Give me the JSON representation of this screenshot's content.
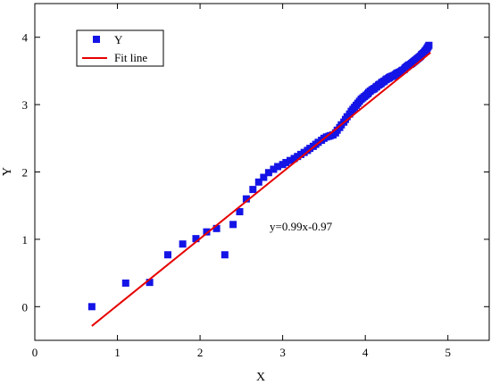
{
  "chart_data": {
    "type": "scatter",
    "xlabel": "X",
    "ylabel": "Y",
    "xlim": [
      0,
      5.5
    ],
    "ylim": [
      -0.5,
      4.5
    ],
    "x_ticks": [
      0,
      1,
      2,
      3,
      4,
      5
    ],
    "y_ticks": [
      0,
      1,
      2,
      3,
      4
    ],
    "x_tick_labels": [
      "0",
      "1",
      "2",
      "3",
      "4",
      "5"
    ],
    "y_tick_labels": [
      "0",
      "1",
      "2",
      "3",
      "4"
    ],
    "grid": false,
    "legend_position": "top-left",
    "annotation": "y=0.99x-0.97",
    "series": [
      {
        "name": "Y",
        "kind": "scatter",
        "color": "#1414e6",
        "marker": "square",
        "x": [
          0.69,
          1.1,
          1.39,
          1.61,
          1.79,
          1.95,
          2.08,
          2.2,
          2.3,
          2.4,
          2.48,
          2.56,
          2.64,
          2.71,
          2.77,
          2.83,
          2.89,
          2.94,
          3.0,
          3.04,
          3.09,
          3.14,
          3.18,
          3.22,
          3.26,
          3.3,
          3.33,
          3.37,
          3.4,
          3.43,
          3.47,
          3.5,
          3.53,
          3.56,
          3.58,
          3.61,
          3.64,
          3.66,
          3.69,
          3.71,
          3.74,
          3.76,
          3.78,
          3.81,
          3.83,
          3.85,
          3.87,
          3.89,
          3.91,
          3.93,
          3.95,
          3.97,
          3.99,
          4.01,
          4.03,
          4.04,
          4.06,
          4.08,
          4.1,
          4.11,
          4.13,
          4.14,
          4.16,
          4.17,
          4.19,
          4.2,
          4.22,
          4.23,
          4.25,
          4.26,
          4.28,
          4.29,
          4.3,
          4.32,
          4.33,
          4.34,
          4.36,
          4.37,
          4.38,
          4.39,
          4.41,
          4.42,
          4.43,
          4.44,
          4.45,
          4.47,
          4.48,
          4.49,
          4.5,
          4.51,
          4.52,
          4.53,
          4.55,
          4.56,
          4.57,
          4.58,
          4.59,
          4.6,
          4.61,
          4.62,
          4.63,
          4.64,
          4.65,
          4.66,
          4.67,
          4.68,
          4.69,
          4.7,
          4.71,
          4.72,
          4.73,
          4.74,
          4.75,
          4.76,
          4.77
        ],
        "y": [
          0.0,
          0.35,
          0.36,
          0.77,
          0.93,
          1.01,
          1.11,
          1.16,
          0.77,
          1.22,
          1.41,
          1.6,
          1.74,
          1.85,
          1.92,
          1.99,
          2.04,
          2.08,
          2.11,
          2.14,
          2.17,
          2.2,
          2.23,
          2.26,
          2.29,
          2.32,
          2.35,
          2.38,
          2.41,
          2.44,
          2.47,
          2.5,
          2.52,
          2.53,
          2.54,
          2.55,
          2.58,
          2.62,
          2.66,
          2.7,
          2.74,
          2.78,
          2.82,
          2.86,
          2.9,
          2.93,
          2.96,
          2.99,
          3.02,
          3.05,
          3.08,
          3.1,
          3.12,
          3.14,
          3.16,
          3.18,
          3.2,
          3.22,
          3.23,
          3.24,
          3.26,
          3.27,
          3.29,
          3.3,
          3.31,
          3.33,
          3.34,
          3.35,
          3.37,
          3.38,
          3.39,
          3.4,
          3.41,
          3.42,
          3.42,
          3.43,
          3.44,
          3.45,
          3.46,
          3.47,
          3.48,
          3.48,
          3.49,
          3.5,
          3.51,
          3.52,
          3.54,
          3.55,
          3.56,
          3.57,
          3.58,
          3.59,
          3.6,
          3.61,
          3.62,
          3.63,
          3.64,
          3.65,
          3.66,
          3.67,
          3.68,
          3.69,
          3.7,
          3.71,
          3.72,
          3.74,
          3.75,
          3.76,
          3.77,
          3.79,
          3.8,
          3.82,
          3.84,
          3.86,
          3.88
        ]
      },
      {
        "name": "Fit line",
        "kind": "line",
        "color": "#e60000",
        "slope": 0.99,
        "intercept": -0.97,
        "x_range": [
          0.69,
          4.79
        ]
      }
    ]
  }
}
